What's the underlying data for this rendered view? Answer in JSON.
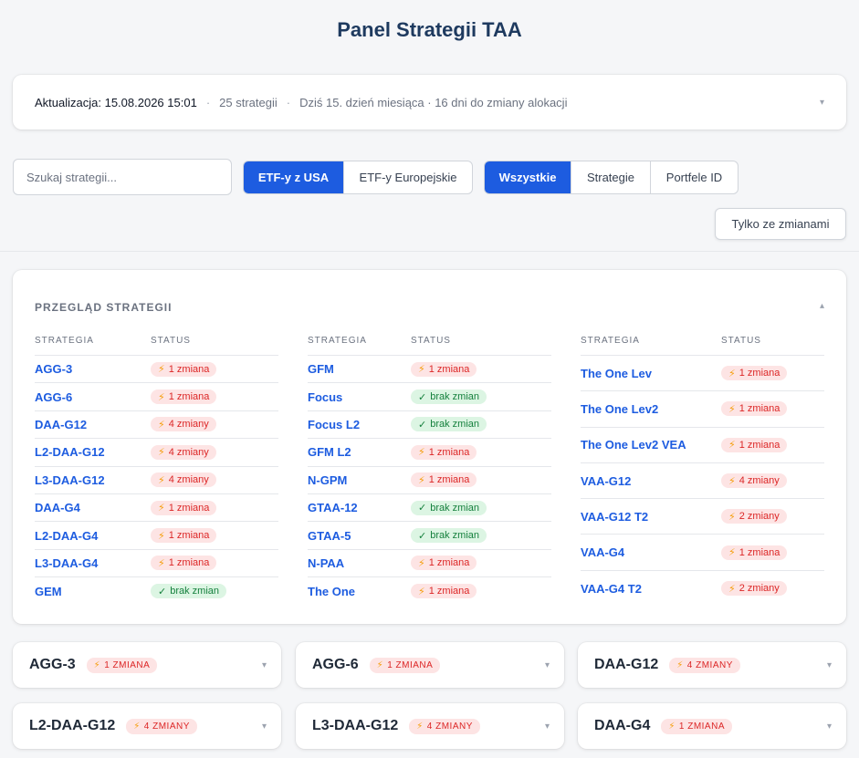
{
  "page": {
    "title": "Panel Strategii TAA"
  },
  "info": {
    "updated": "Aktualizacja: 15.08.2026 15:01",
    "separator": "·",
    "count": "25 strategii",
    "day_note": "Dziś 15. dzień miesiąca · 16 dni do zmiany alokacji",
    "caret": "▾"
  },
  "search": {
    "placeholder": "Szukaj strategii..."
  },
  "market_toggle": {
    "options": [
      "ETF-y z USA",
      "ETF-y Europejskie"
    ],
    "selected": "ETF-y z USA"
  },
  "view_toggle": {
    "options": [
      "Wszystkie",
      "Strategie",
      "Portfele ID"
    ],
    "selected": "Wszystkie"
  },
  "only_changes_label": "Tylko ze zmianami",
  "overview": {
    "title": "PRZEGLĄD STRATEGII",
    "caret": "▴",
    "headers": {
      "strategy": "STRATEGIA",
      "status": "STATUS"
    },
    "columns": [
      [
        {
          "name": "AGG-3",
          "status": "1 zmiana",
          "type": "change"
        },
        {
          "name": "AGG-6",
          "status": "1 zmiana",
          "type": "change"
        },
        {
          "name": "DAA-G12",
          "status": "4 zmiany",
          "type": "change"
        },
        {
          "name": "L2-DAA-G12",
          "status": "4 zmiany",
          "type": "change"
        },
        {
          "name": "L3-DAA-G12",
          "status": "4 zmiany",
          "type": "change"
        },
        {
          "name": "DAA-G4",
          "status": "1 zmiana",
          "type": "change"
        },
        {
          "name": "L2-DAA-G4",
          "status": "1 zmiana",
          "type": "change"
        },
        {
          "name": "L3-DAA-G4",
          "status": "1 zmiana",
          "type": "change"
        },
        {
          "name": "GEM",
          "status": "brak zmian",
          "type": "ok"
        }
      ],
      [
        {
          "name": "GFM",
          "status": "1 zmiana",
          "type": "change"
        },
        {
          "name": "Focus",
          "status": "brak zmian",
          "type": "ok"
        },
        {
          "name": "Focus L2",
          "status": "brak zmian",
          "type": "ok"
        },
        {
          "name": "GFM L2",
          "status": "1 zmiana",
          "type": "change"
        },
        {
          "name": "N-GPM",
          "status": "1 zmiana",
          "type": "change"
        },
        {
          "name": "GTAA-12",
          "status": "brak zmian",
          "type": "ok"
        },
        {
          "name": "GTAA-5",
          "status": "brak zmian",
          "type": "ok"
        },
        {
          "name": "N-PAA",
          "status": "1 zmiana",
          "type": "change"
        },
        {
          "name": "The One",
          "status": "1 zmiana",
          "type": "change"
        }
      ],
      [
        {
          "name": "The One Lev",
          "status": "1 zmiana",
          "type": "change"
        },
        {
          "name": "The One Lev2",
          "status": "1 zmiana",
          "type": "change"
        },
        {
          "name": "The One Lev2 VEA",
          "status": "1 zmiana",
          "type": "change"
        },
        {
          "name": "VAA-G12",
          "status": "4 zmiany",
          "type": "change"
        },
        {
          "name": "VAA-G12 T2",
          "status": "2 zmiany",
          "type": "change"
        },
        {
          "name": "VAA-G4",
          "status": "1 zmiana",
          "type": "change"
        },
        {
          "name": "VAA-G4 T2",
          "status": "2 zmiany",
          "type": "change"
        }
      ]
    ]
  },
  "strategy_cards": [
    {
      "name": "AGG-3",
      "badge": "1 ZMIANA"
    },
    {
      "name": "AGG-6",
      "badge": "1 ZMIANA"
    },
    {
      "name": "DAA-G12",
      "badge": "4 ZMIANY"
    },
    {
      "name": "L2-DAA-G12",
      "badge": "4 ZMIANY"
    },
    {
      "name": "L3-DAA-G12",
      "badge": "4 ZMIANY"
    },
    {
      "name": "DAA-G4",
      "badge": "1 ZMIANA"
    }
  ],
  "icons": {
    "change": "⚡",
    "ok": "✓"
  },
  "colors": {
    "accent": "#1d5ce0",
    "title": "#1e3a5f",
    "change_bg": "#fde4e4",
    "change_text": "#dc2626",
    "ok_bg": "#dcf5e3",
    "ok_text": "#15803d"
  }
}
